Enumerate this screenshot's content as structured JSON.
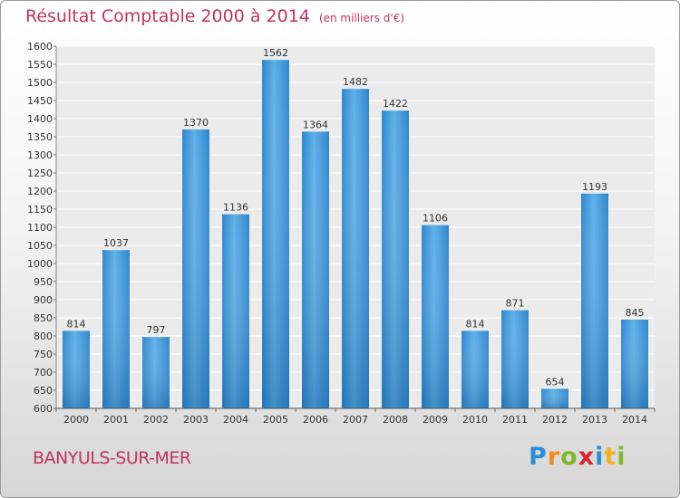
{
  "header": {
    "title": "Résultat Comptable 2000 à 2014",
    "subtitle": "(en milliers d'€)"
  },
  "footer": {
    "city": "BANYULS-SUR-MER",
    "logo": "Proxiti",
    "logo_letters": [
      {
        "char": "P",
        "color": "#2a8fd6"
      },
      {
        "char": "r",
        "color": "#f28a1e"
      },
      {
        "char": "o",
        "color": "#7cb928"
      },
      {
        "char": "x",
        "color": "#d9262c"
      },
      {
        "char": "i",
        "color": "#2a8fd6"
      },
      {
        "char": "t",
        "color": "#f2b21e"
      },
      {
        "char": "i",
        "color": "#7cb928"
      }
    ]
  },
  "chart_data": {
    "type": "bar",
    "categories": [
      "2000",
      "2001",
      "2002",
      "2003",
      "2004",
      "2005",
      "2006",
      "2007",
      "2008",
      "2009",
      "2010",
      "2011",
      "2012",
      "2013",
      "2014"
    ],
    "values": [
      814,
      1037,
      797,
      1370,
      1136,
      1562,
      1364,
      1482,
      1422,
      1106,
      814,
      871,
      654,
      1193,
      845
    ],
    "ylim": [
      600,
      1600
    ],
    "yticks": [
      600,
      650,
      700,
      750,
      800,
      850,
      900,
      950,
      1000,
      1050,
      1100,
      1150,
      1200,
      1250,
      1300,
      1350,
      1400,
      1450,
      1500,
      1550,
      1600
    ],
    "grid": true,
    "bar_color": "#3d96d8",
    "title": "Résultat Comptable 2000 à 2014",
    "xlabel": "",
    "ylabel": ""
  }
}
